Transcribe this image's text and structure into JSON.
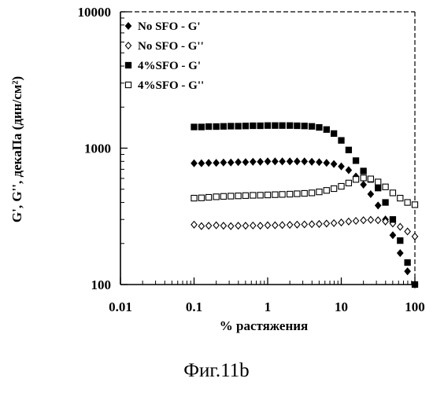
{
  "caption": "Фиг.11b",
  "chart_data": {
    "type": "scatter",
    "x_scale": "log",
    "y_scale": "log",
    "xlim": [
      0.01,
      100
    ],
    "ylim": [
      100,
      10000
    ],
    "xlabel": "% растяжения",
    "ylabel": "G', G'', декаПа (дин/см²)",
    "x_ticks": [
      "0.01",
      "0.1",
      "1",
      "10",
      "100"
    ],
    "y_ticks": [
      "100",
      "1000",
      "10000"
    ],
    "grid": false,
    "legend_position": "top-left",
    "series": [
      {
        "name": "No SFO - G'",
        "marker": "filled-diamond",
        "x": [
          0.1,
          0.126,
          0.158,
          0.2,
          0.251,
          0.316,
          0.398,
          0.501,
          0.631,
          0.794,
          1.0,
          1.26,
          1.58,
          2.0,
          2.51,
          3.16,
          3.98,
          5.01,
          6.31,
          7.94,
          10.0,
          12.6,
          15.8,
          20.0,
          25.1,
          31.6,
          39.8,
          50.1,
          63.1,
          79.4,
          100
        ],
        "y": [
          775,
          775,
          780,
          780,
          785,
          785,
          790,
          790,
          795,
          795,
          800,
          800,
          800,
          800,
          800,
          800,
          795,
          790,
          780,
          765,
          735,
          690,
          620,
          540,
          460,
          380,
          300,
          230,
          170,
          125,
          100
        ]
      },
      {
        "name": "No SFO - G''",
        "marker": "open-diamond",
        "x": [
          0.1,
          0.126,
          0.158,
          0.2,
          0.251,
          0.316,
          0.398,
          0.501,
          0.631,
          0.794,
          1.0,
          1.26,
          1.58,
          2.0,
          2.51,
          3.16,
          3.98,
          5.01,
          6.31,
          7.94,
          10.0,
          12.6,
          15.8,
          20.0,
          25.1,
          31.6,
          39.8,
          50.1,
          63.1,
          79.4,
          100
        ],
        "y": [
          275,
          268,
          270,
          272,
          270,
          268,
          270,
          270,
          271,
          270,
          272,
          272,
          273,
          274,
          275,
          276,
          277,
          278,
          280,
          282,
          285,
          290,
          293,
          296,
          298,
          296,
          290,
          280,
          265,
          245,
          225
        ]
      },
      {
        "name": "4%SFO - G'",
        "marker": "filled-square",
        "x": [
          0.1,
          0.126,
          0.158,
          0.2,
          0.251,
          0.316,
          0.398,
          0.501,
          0.631,
          0.794,
          1.0,
          1.26,
          1.58,
          2.0,
          2.51,
          3.16,
          3.98,
          5.01,
          6.31,
          7.94,
          10.0,
          12.6,
          15.8,
          20.0,
          25.1,
          31.6,
          39.8,
          50.1,
          63.1,
          79.4,
          100
        ],
        "y": [
          1430,
          1430,
          1440,
          1440,
          1445,
          1450,
          1450,
          1455,
          1460,
          1460,
          1465,
          1465,
          1465,
          1465,
          1460,
          1455,
          1445,
          1420,
          1370,
          1280,
          1140,
          970,
          810,
          680,
          590,
          510,
          400,
          300,
          210,
          145,
          100
        ]
      },
      {
        "name": "4%SFO - G''",
        "marker": "open-square",
        "x": [
          0.1,
          0.126,
          0.158,
          0.2,
          0.251,
          0.316,
          0.398,
          0.501,
          0.631,
          0.794,
          1.0,
          1.26,
          1.58,
          2.0,
          2.51,
          3.16,
          3.98,
          5.01,
          6.31,
          7.94,
          10.0,
          12.6,
          15.8,
          20.0,
          25.1,
          31.6,
          39.8,
          50.1,
          63.1,
          79.4,
          100
        ],
        "y": [
          430,
          432,
          436,
          440,
          443,
          445,
          447,
          449,
          451,
          452,
          454,
          456,
          458,
          460,
          463,
          466,
          470,
          478,
          490,
          505,
          525,
          555,
          590,
          605,
          595,
          565,
          520,
          470,
          430,
          400,
          385
        ]
      }
    ]
  }
}
